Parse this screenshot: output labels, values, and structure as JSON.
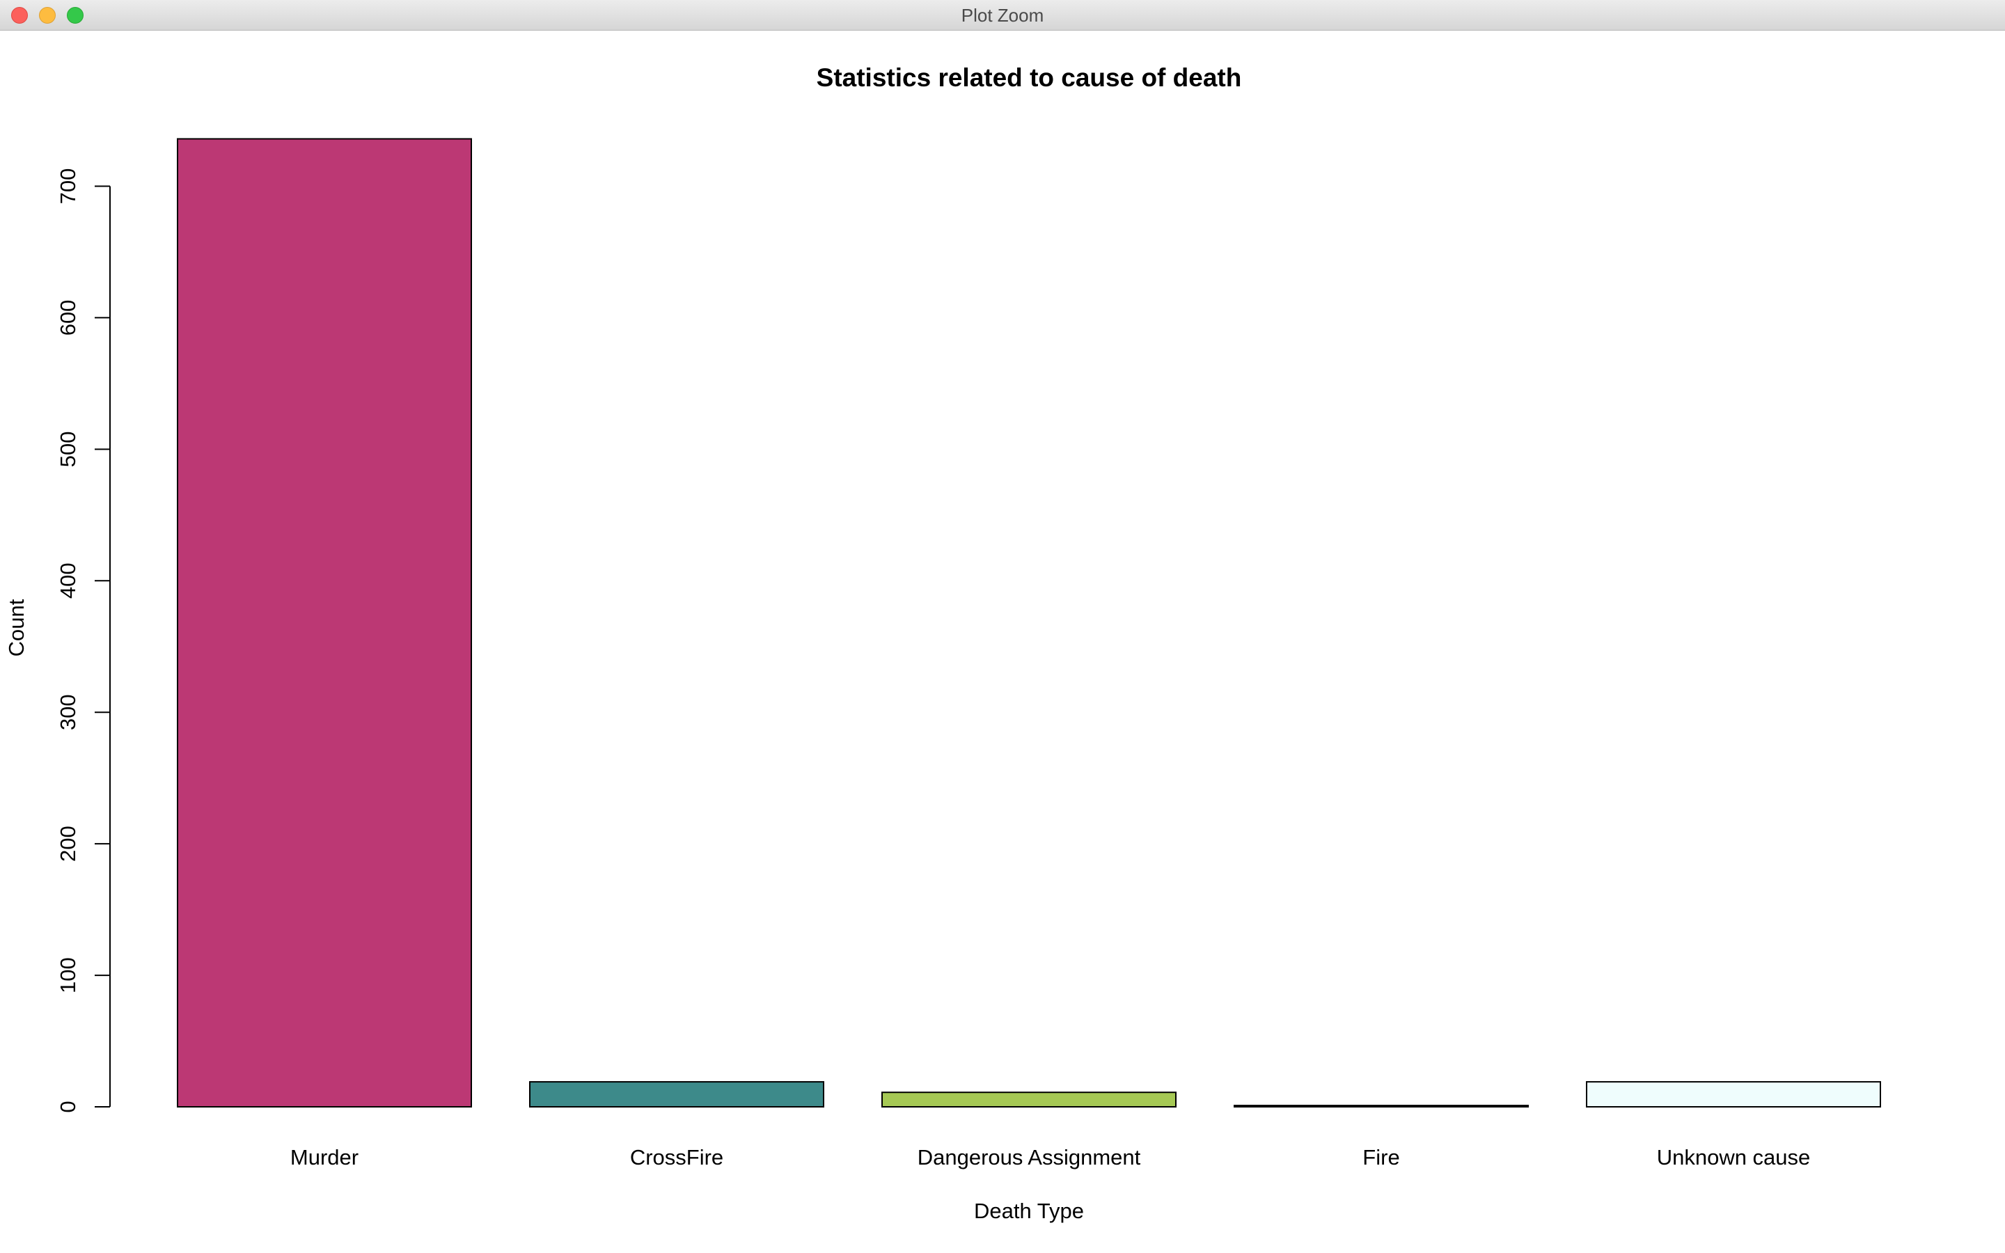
{
  "window": {
    "title": "Plot Zoom"
  },
  "chart_data": {
    "type": "bar",
    "title": "Statistics related to cause of death",
    "xlabel": "Death Type",
    "ylabel": "Count",
    "categories": [
      "Murder",
      "CrossFire",
      "Dangerous Assignment",
      "Fire",
      "Unknown cause"
    ],
    "values": [
      736,
      19,
      11,
      1,
      19
    ],
    "colors": [
      "#bc3874",
      "#3d8a8a",
      "#a6c955",
      "#1a1a1a",
      "#effdfd"
    ],
    "ylim": [
      0,
      750
    ],
    "yticks": [
      0,
      100,
      200,
      300,
      400,
      500,
      600,
      700
    ],
    "grid": false,
    "legend": "none"
  }
}
